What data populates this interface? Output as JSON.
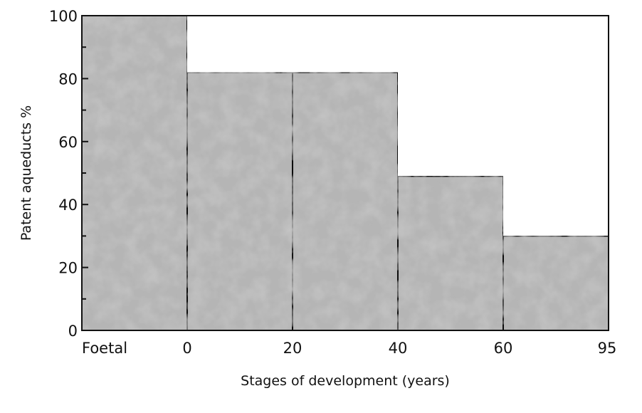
{
  "chart_data": {
    "type": "bar",
    "title": "",
    "xlabel": "Stages of development (years)",
    "ylabel": "Patent aqueducts %",
    "x_tick_labels": [
      "Foetal",
      "0",
      "20",
      "40",
      "60",
      "95"
    ],
    "categories": [
      "Foetal",
      "0–20",
      "20–40",
      "40–60",
      "60–95"
    ],
    "values": [
      100,
      82,
      82,
      49,
      30
    ],
    "y_ticks": [
      0,
      20,
      40,
      60,
      80,
      100
    ],
    "ylim": [
      0,
      100
    ],
    "grid": false,
    "legend": "none",
    "bar_fill": "#b5b5b5",
    "bar_stroke": "#111111"
  }
}
